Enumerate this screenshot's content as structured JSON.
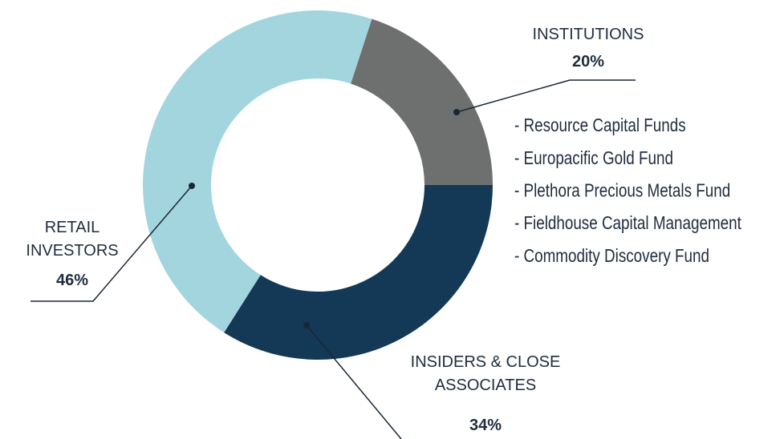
{
  "chart_data": {
    "type": "donut",
    "categories": [
      "INSTITUTIONS",
      "INSIDERS & CLOSE ASSOCIATES",
      "RETAIL INVESTORS"
    ],
    "values": [
      20,
      34,
      46
    ],
    "value_labels": [
      "20%",
      "34%",
      "46%"
    ],
    "colors": [
      "#6e706f",
      "#133956",
      "#a3d5df"
    ],
    "annotations": [
      "- Resource Capital Funds",
      "- Europacific Gold Fund",
      "- Plethora Precious Metals Fund",
      "- Fieldhouse Capital Management",
      "- Commodity Discovery Fund"
    ]
  }
}
